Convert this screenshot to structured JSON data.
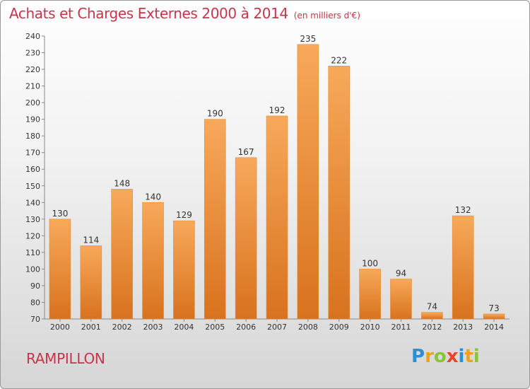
{
  "header": {
    "title": "Achats et Charges Externes 2000 à 2014",
    "unit": "(en milliers d'€)"
  },
  "footer": {
    "commune": "RAMPILLON",
    "logo_letters": [
      "P",
      "r",
      "o",
      "x",
      "i",
      "t",
      "i"
    ]
  },
  "colors": {
    "title": "#c8344a",
    "bar_light": "#f7a95a",
    "bar_dark": "#d8721e",
    "logo": [
      "#2a8fd6",
      "#f0a020",
      "#8bc43a",
      "#e8452c",
      "#2a8fd6",
      "#f0a020",
      "#8bc43a"
    ]
  },
  "chart_data": {
    "type": "bar",
    "title": "Achats et Charges Externes 2000 à 2014",
    "categories": [
      "2000",
      "2001",
      "2002",
      "2003",
      "2004",
      "2005",
      "2006",
      "2007",
      "2008",
      "2009",
      "2010",
      "2011",
      "2012",
      "2013",
      "2014"
    ],
    "values": [
      130,
      114,
      148,
      140,
      129,
      190,
      167,
      192,
      235,
      222,
      100,
      94,
      74,
      132,
      73
    ],
    "ylim": [
      70,
      240
    ],
    "yticks": [
      70,
      80,
      90,
      100,
      110,
      120,
      130,
      140,
      150,
      160,
      170,
      180,
      190,
      200,
      210,
      220,
      230,
      240
    ],
    "grid": false
  }
}
